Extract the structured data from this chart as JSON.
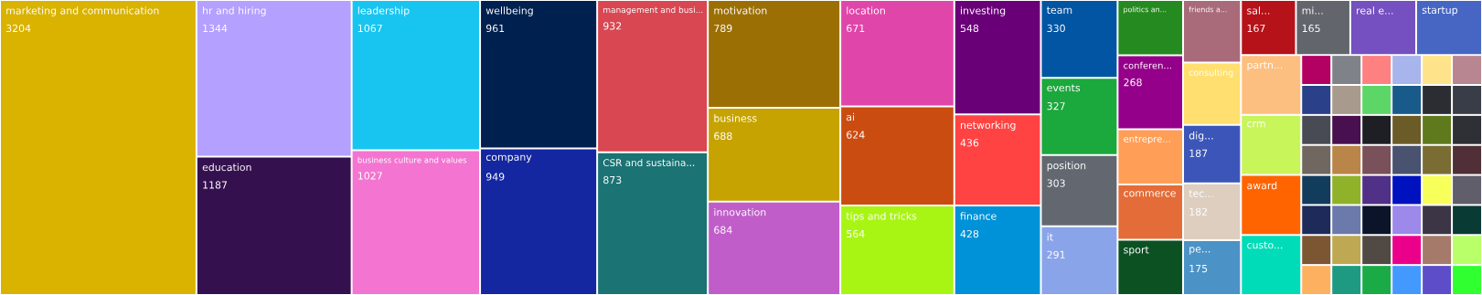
{
  "chart_data": {
    "type": "other",
    "data_labels": true,
    "categories": [
      "marketing and communication",
      "hr and hiring",
      "education",
      "leadership",
      "business culture and values",
      "wellbeing",
      "company",
      "management and busi...",
      "CSR and sustaina...",
      "motivation",
      "business",
      "innovation",
      "location",
      "ai",
      "tips and tricks",
      "investing",
      "networking",
      "finance",
      "team",
      "events",
      "position",
      "it",
      "politics an...",
      "conferen...",
      "entrepre...",
      "commerce",
      "sport",
      "friends a...",
      "consulting",
      "dig...",
      "tec...",
      "pe...",
      "sal...",
      "mi...",
      "real e...",
      "startup",
      "partn...",
      "crm",
      "award",
      "custo...",
      null,
      null,
      null,
      null,
      null,
      null,
      null,
      null,
      null,
      null,
      null,
      null,
      null,
      null,
      null,
      null,
      null,
      null,
      null,
      null,
      null,
      null,
      null,
      null,
      null,
      null,
      null,
      null,
      null,
      null,
      null,
      null,
      null,
      null,
      null,
      null,
      null,
      null,
      null,
      null,
      null,
      null,
      null,
      null,
      null,
      null,
      null,
      null
    ],
    "values": [
      3204,
      1344,
      1187,
      1067,
      1027,
      961,
      949,
      932,
      873,
      789,
      688,
      684,
      671,
      624,
      564,
      548,
      436,
      428,
      330,
      327,
      303,
      291,
      null,
      268,
      null,
      null,
      null,
      null,
      null,
      187,
      182,
      175,
      167,
      165,
      null,
      null,
      null,
      null,
      null,
      null,
      null,
      null,
      null,
      null,
      null,
      null,
      null,
      null,
      null,
      null,
      null,
      null,
      null,
      null,
      null,
      null,
      null,
      null,
      null,
      null,
      null,
      null,
      null,
      null,
      null,
      null,
      null,
      null,
      null,
      null,
      null,
      null,
      null,
      null,
      null,
      null,
      null,
      null,
      null,
      null,
      null,
      null,
      null,
      null,
      null,
      null,
      null,
      null
    ],
    "colors": [
      "#d9b300",
      "#b3a0ff",
      "#35104f",
      "#18c5f1",
      "#f375d1",
      "#00204f",
      "#1426a0",
      "#d84752",
      "#1b7374",
      "#9c6f05",
      "#c6a300",
      "#c05dc9",
      "#e046a9",
      "#cb4c10",
      "#a8f514",
      "#6a0078",
      "#ff4343",
      "#0092d8",
      "#0255a2",
      "#1ba83c",
      "#636870",
      "#8aa4ea",
      "#258a1f",
      "#95008a",
      "#ff9e57",
      "#e36c38",
      "#0b5122",
      "#a96a7a",
      "#ffdf6f",
      "#3b56b8",
      "#ddcebf",
      "#4b92c6",
      "#b5121a",
      "#62656c",
      "#7550c0",
      "#4766c4",
      "#fcbf80",
      "#c8f55a",
      "#ff6400",
      "#00dcb8",
      "#b30063",
      "#7f8288",
      "#ff8080",
      "#a8b4ec",
      "#ffe38a",
      "#b88690",
      "#2a4089",
      "#a89a8c",
      "#5cd667",
      "#185b8a",
      "#2b2d33",
      "#393d48",
      "#484b53",
      "#706860",
      "#123c5c",
      "#1e2a5a",
      "#7c5532",
      "#fdb160",
      "#48104f",
      "#1d1f24",
      "#6b5b27",
      "#5f7a1c",
      "#2f3036",
      "#b98548",
      "#8fb22a",
      "#6b7aaa",
      "#bea853",
      "#1f9a82",
      "#7a505a",
      "#495370",
      "#7a6d33",
      "#502f39",
      "#513087",
      "#0c1429",
      "#514943",
      "#1aab46",
      "#0012c0",
      "#f7ff5a",
      "#615e6b",
      "#9c89ea",
      "#eb008c",
      "#4499ff",
      "#3b3546",
      "#0a3a34",
      "#a57a6a",
      "#5d4dc8",
      "#b9ff6a",
      "#30ff30"
    ]
  }
}
